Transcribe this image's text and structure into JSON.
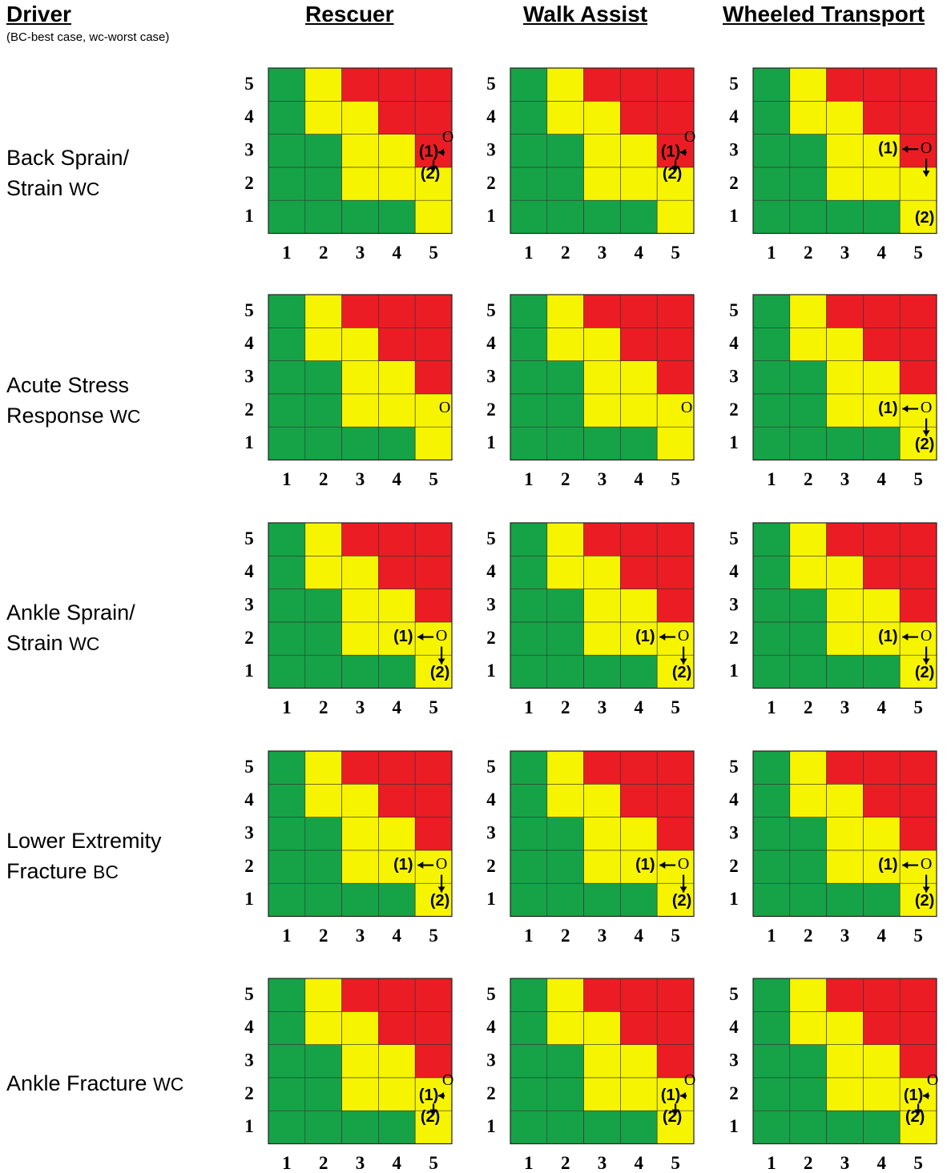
{
  "header": {
    "driver": "Driver",
    "driver_note": "(BC-best case, wc-worst case)",
    "columns": [
      "Rescuer",
      "Walk Assist",
      "Wheeled Transport"
    ]
  },
  "axis_ticks": [
    "1",
    "2",
    "3",
    "4",
    "5"
  ],
  "colors": {
    "green": "#16a347",
    "yellow": "#f7f400",
    "red": "#ec1c24"
  },
  "colormap": [
    [
      "G",
      "G",
      "G",
      "G",
      "Y"
    ],
    [
      "G",
      "G",
      "Y",
      "Y",
      "Y"
    ],
    [
      "G",
      "G",
      "Y",
      "Y",
      "R"
    ],
    [
      "G",
      "Y",
      "Y",
      "R",
      "R"
    ],
    [
      "G",
      "Y",
      "R",
      "R",
      "R"
    ]
  ],
  "markers": {
    "current": "O",
    "step1": "(1)",
    "step2": "(2)"
  },
  "rows": [
    {
      "label_line1": "Back Sprain/",
      "label_line2": "Strain",
      "case": "WC",
      "panels": [
        {
          "O": [
            5,
            3
          ],
          "p1": [
            5,
            3
          ],
          "p2": [
            5,
            2
          ],
          "layout": "tight"
        },
        {
          "O": [
            5,
            3
          ],
          "p1": [
            5,
            3
          ],
          "p2": [
            5,
            2
          ],
          "layout": "tight"
        },
        {
          "O": [
            5,
            3
          ],
          "p1": [
            4,
            3
          ],
          "p2": [
            5,
            1
          ],
          "layout": "wide"
        }
      ]
    },
    {
      "label_line1": "Acute Stress",
      "label_line2": "Response",
      "case": "WC",
      "panels": [
        {
          "O": [
            5,
            2
          ]
        },
        {
          "O": [
            5,
            2
          ]
        },
        {
          "O": [
            5,
            2
          ],
          "p1": [
            4,
            2
          ],
          "p2": [
            5,
            1
          ],
          "layout": "wide"
        }
      ]
    },
    {
      "label_line1": "Ankle Sprain/",
      "label_line2": "Strain",
      "case": "WC",
      "panels": [
        {
          "O": [
            5,
            2
          ],
          "p1": [
            4,
            2
          ],
          "p2": [
            5,
            1
          ],
          "layout": "wide"
        },
        {
          "O": [
            5,
            2
          ],
          "p1": [
            4,
            2
          ],
          "p2": [
            5,
            1
          ],
          "layout": "wide"
        },
        {
          "O": [
            5,
            2
          ],
          "p1": [
            4,
            2
          ],
          "p2": [
            5,
            1
          ],
          "layout": "wide"
        }
      ]
    },
    {
      "label_line1": "Lower Extremity",
      "label_line2": "Fracture",
      "case": "BC",
      "panels": [
        {
          "O": [
            5,
            2
          ],
          "p1": [
            4,
            2
          ],
          "p2": [
            5,
            1
          ],
          "layout": "wide"
        },
        {
          "O": [
            5,
            2
          ],
          "p1": [
            4,
            2
          ],
          "p2": [
            5,
            1
          ],
          "layout": "wide"
        },
        {
          "O": [
            5,
            2
          ],
          "p1": [
            4,
            2
          ],
          "p2": [
            5,
            1
          ],
          "layout": "wide"
        }
      ]
    },
    {
      "label_line1": "Ankle Fracture",
      "label_line2": "",
      "case": "WC",
      "panels": [
        {
          "O": [
            5,
            2
          ],
          "p1": [
            5,
            2
          ],
          "p2": [
            5,
            1
          ],
          "layout": "tight"
        },
        {
          "O": [
            5,
            2
          ],
          "p1": [
            5,
            2
          ],
          "p2": [
            5,
            1
          ],
          "layout": "tight"
        },
        {
          "O": [
            5,
            2
          ],
          "p1": [
            5,
            2
          ],
          "p2": [
            5,
            1
          ],
          "layout": "tight"
        }
      ]
    }
  ]
}
